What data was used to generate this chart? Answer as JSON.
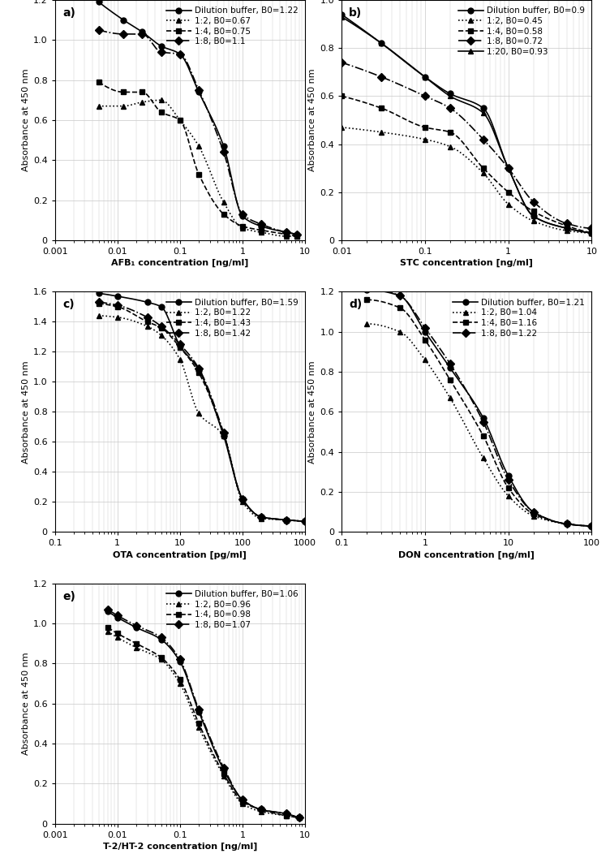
{
  "panels": {
    "a": {
      "title": "a)",
      "xlabel": "AFB₁ concentration [ng/ml]",
      "ylabel": "Absorbance at 450 nm",
      "xlim": [
        0.001,
        10
      ],
      "ylim": [
        0,
        1.2
      ],
      "yticks": [
        0,
        0.2,
        0.4,
        0.6,
        0.8,
        1.0,
        1.2
      ],
      "series": [
        {
          "label": "Dilution buffer, B0=1.22",
          "linestyle": "-",
          "marker": "o",
          "x": [
            0.005,
            0.0125,
            0.025,
            0.05,
            0.1,
            0.2,
            0.5,
            1.0,
            2.0,
            5.0,
            7.5
          ],
          "y": [
            1.19,
            1.1,
            1.04,
            0.97,
            0.93,
            0.74,
            0.47,
            0.12,
            0.07,
            0.04,
            0.03
          ]
        },
        {
          "label": "1:2, B0=0.67",
          "linestyle": ":",
          "marker": "^",
          "x": [
            0.005,
            0.0125,
            0.025,
            0.05,
            0.1,
            0.2,
            0.5,
            1.0,
            2.0,
            5.0,
            7.5
          ],
          "y": [
            0.67,
            0.67,
            0.69,
            0.7,
            0.6,
            0.47,
            0.19,
            0.06,
            0.04,
            0.02,
            0.02
          ]
        },
        {
          "label": "1:4, B0=0.75",
          "linestyle": "--",
          "marker": "s",
          "x": [
            0.005,
            0.0125,
            0.025,
            0.05,
            0.1,
            0.2,
            0.5,
            1.0,
            2.0,
            5.0,
            7.5
          ],
          "y": [
            0.79,
            0.74,
            0.74,
            0.64,
            0.6,
            0.33,
            0.13,
            0.07,
            0.05,
            0.03,
            0.02
          ]
        },
        {
          "label": "1:8, B0=1.1",
          "linestyle": "-.",
          "marker": "D",
          "x": [
            0.005,
            0.0125,
            0.025,
            0.05,
            0.1,
            0.2,
            0.5,
            1.0,
            2.0,
            5.0,
            7.5
          ],
          "y": [
            1.05,
            1.03,
            1.03,
            0.94,
            0.93,
            0.75,
            0.44,
            0.13,
            0.08,
            0.04,
            0.03
          ]
        }
      ]
    },
    "b": {
      "title": "b)",
      "xlabel": "STC concentration [ng/ml]",
      "ylabel": "Absorbance at 450 nm",
      "xlim": [
        0.01,
        10
      ],
      "ylim": [
        0,
        1.0
      ],
      "yticks": [
        0,
        0.2,
        0.4,
        0.6,
        0.8,
        1.0
      ],
      "series": [
        {
          "label": "Dilution buffer, B0=0.9",
          "linestyle": "-",
          "marker": "o",
          "x": [
            0.01,
            0.03,
            0.1,
            0.2,
            0.5,
            1.0,
            2.0,
            5.0,
            10.0
          ],
          "y": [
            0.94,
            0.82,
            0.68,
            0.61,
            0.55,
            0.3,
            0.1,
            0.05,
            0.03
          ]
        },
        {
          "label": "1:2, B0=0.45",
          "linestyle": ":",
          "marker": "^",
          "x": [
            0.01,
            0.03,
            0.1,
            0.2,
            0.5,
            1.0,
            2.0,
            5.0,
            10.0
          ],
          "y": [
            0.47,
            0.45,
            0.42,
            0.39,
            0.28,
            0.15,
            0.08,
            0.04,
            0.03
          ]
        },
        {
          "label": "1:4, B0=0.58",
          "linestyle": "--",
          "marker": "s",
          "x": [
            0.01,
            0.03,
            0.1,
            0.2,
            0.5,
            1.0,
            2.0,
            5.0,
            10.0
          ],
          "y": [
            0.6,
            0.55,
            0.47,
            0.45,
            0.3,
            0.2,
            0.12,
            0.06,
            0.03
          ]
        },
        {
          "label": "1:8, B0=0.72",
          "linestyle": "-.",
          "marker": "D",
          "x": [
            0.01,
            0.03,
            0.1,
            0.2,
            0.5,
            1.0,
            2.0,
            5.0,
            10.0
          ],
          "y": [
            0.74,
            0.68,
            0.6,
            0.55,
            0.42,
            0.3,
            0.16,
            0.07,
            0.05
          ]
        },
        {
          "label": "1:20, B0=0.93",
          "linestyle": "-",
          "marker": "^",
          "x": [
            0.01,
            0.03,
            0.1,
            0.2,
            0.5,
            1.0,
            2.0,
            5.0,
            10.0
          ],
          "y": [
            0.93,
            0.82,
            0.68,
            0.6,
            0.53,
            0.3,
            0.1,
            0.05,
            0.03
          ]
        }
      ]
    },
    "c": {
      "title": "c)",
      "xlabel": "OTA concentration [pg/ml]",
      "ylabel": "Absorbance at 450 nm",
      "xlim": [
        0.1,
        1000
      ],
      "ylim": [
        0,
        1.6
      ],
      "yticks": [
        0,
        0.2,
        0.4,
        0.6,
        0.8,
        1.0,
        1.2,
        1.4,
        1.6
      ],
      "series": [
        {
          "label": "Dilution buffer, B0=1.59",
          "linestyle": "-",
          "marker": "o",
          "x": [
            0.5,
            1.0,
            3.0,
            5.0,
            10.0,
            20.0,
            50.0,
            100.0,
            200.0,
            500.0,
            1000.0
          ],
          "y": [
            1.59,
            1.57,
            1.53,
            1.5,
            1.24,
            1.08,
            0.64,
            0.22,
            0.1,
            0.08,
            0.07
          ]
        },
        {
          "label": "1:2, B0=1.22",
          "linestyle": ":",
          "marker": "^",
          "x": [
            0.5,
            1.0,
            3.0,
            5.0,
            10.0,
            20.0,
            50.0,
            100.0,
            200.0,
            500.0,
            1000.0
          ],
          "y": [
            1.44,
            1.43,
            1.37,
            1.31,
            1.15,
            0.79,
            0.64,
            0.2,
            0.09,
            0.08,
            0.07
          ]
        },
        {
          "label": "1:4, B0=1.43",
          "linestyle": "--",
          "marker": "s",
          "x": [
            0.5,
            1.0,
            3.0,
            5.0,
            10.0,
            20.0,
            50.0,
            100.0,
            200.0,
            500.0,
            1000.0
          ],
          "y": [
            1.52,
            1.5,
            1.4,
            1.36,
            1.23,
            1.06,
            0.65,
            0.22,
            0.1,
            0.08,
            0.07
          ]
        },
        {
          "label": "1:8, B0=1.42",
          "linestyle": "-.",
          "marker": "D",
          "x": [
            0.5,
            1.0,
            3.0,
            5.0,
            10.0,
            20.0,
            50.0,
            100.0,
            200.0,
            500.0,
            1000.0
          ],
          "y": [
            1.53,
            1.51,
            1.43,
            1.37,
            1.25,
            1.09,
            0.66,
            0.22,
            0.1,
            0.08,
            0.07
          ]
        }
      ]
    },
    "d": {
      "title": "d)",
      "xlabel": "DON concentration [ng/ml]",
      "ylabel": "Absorbance at 450 nm",
      "xlim": [
        0.1,
        100
      ],
      "ylim": [
        0,
        1.2
      ],
      "yticks": [
        0,
        0.2,
        0.4,
        0.6,
        0.8,
        1.0,
        1.2
      ],
      "series": [
        {
          "label": "Dilution buffer, B0=1.21",
          "linestyle": "-",
          "marker": "o",
          "x": [
            0.2,
            0.5,
            1.0,
            2.0,
            5.0,
            10.0,
            20.0,
            50.0,
            100.0
          ],
          "y": [
            1.21,
            1.18,
            1.0,
            0.82,
            0.57,
            0.28,
            0.1,
            0.04,
            0.03
          ]
        },
        {
          "label": "1:2, B0=1.04",
          "linestyle": ":",
          "marker": "^",
          "x": [
            0.2,
            0.5,
            1.0,
            2.0,
            5.0,
            10.0,
            20.0,
            50.0,
            100.0
          ],
          "y": [
            1.04,
            1.0,
            0.86,
            0.67,
            0.37,
            0.18,
            0.08,
            0.04,
            0.03
          ]
        },
        {
          "label": "1:4, B0=1.16",
          "linestyle": "--",
          "marker": "s",
          "x": [
            0.2,
            0.5,
            1.0,
            2.0,
            5.0,
            10.0,
            20.0,
            50.0,
            100.0
          ],
          "y": [
            1.16,
            1.12,
            0.96,
            0.76,
            0.48,
            0.22,
            0.09,
            0.04,
            0.03
          ]
        },
        {
          "label": "1:8, B0=1.22",
          "linestyle": "-.",
          "marker": "D",
          "x": [
            0.2,
            0.5,
            1.0,
            2.0,
            5.0,
            10.0,
            20.0,
            50.0,
            100.0
          ],
          "y": [
            1.22,
            1.18,
            1.02,
            0.84,
            0.55,
            0.26,
            0.1,
            0.04,
            0.03
          ]
        }
      ]
    },
    "e": {
      "title": "e)",
      "xlabel": "T-2/HT-2 concentration [ng/ml]",
      "ylabel": "Absorbance at 450 nm",
      "xlim": [
        0.001,
        10
      ],
      "ylim": [
        0,
        1.2
      ],
      "yticks": [
        0,
        0.2,
        0.4,
        0.6,
        0.8,
        1.0,
        1.2
      ],
      "series": [
        {
          "label": "Dilution buffer, B0=1.06",
          "linestyle": "-",
          "marker": "o",
          "x": [
            0.007,
            0.01,
            0.02,
            0.05,
            0.1,
            0.2,
            0.5,
            1.0,
            2.0,
            5.0,
            8.0
          ],
          "y": [
            1.06,
            1.03,
            0.98,
            0.92,
            0.81,
            0.56,
            0.27,
            0.12,
            0.07,
            0.05,
            0.03
          ]
        },
        {
          "label": "1:2, B0=0.96",
          "linestyle": ":",
          "marker": "^",
          "x": [
            0.007,
            0.01,
            0.02,
            0.05,
            0.1,
            0.2,
            0.5,
            1.0,
            2.0,
            5.0,
            8.0
          ],
          "y": [
            0.96,
            0.93,
            0.88,
            0.82,
            0.7,
            0.48,
            0.24,
            0.1,
            0.06,
            0.04,
            0.03
          ]
        },
        {
          "label": "1:4, B0=0.98",
          "linestyle": "--",
          "marker": "s",
          "x": [
            0.007,
            0.01,
            0.02,
            0.05,
            0.1,
            0.2,
            0.5,
            1.0,
            2.0,
            5.0,
            8.0
          ],
          "y": [
            0.98,
            0.95,
            0.9,
            0.83,
            0.72,
            0.5,
            0.25,
            0.11,
            0.07,
            0.04,
            0.03
          ]
        },
        {
          "label": "1:8, B0=1.07",
          "linestyle": "-.",
          "marker": "D",
          "x": [
            0.007,
            0.01,
            0.02,
            0.05,
            0.1,
            0.2,
            0.5,
            1.0,
            2.0,
            5.0,
            8.0
          ],
          "y": [
            1.07,
            1.04,
            0.99,
            0.93,
            0.82,
            0.57,
            0.28,
            0.12,
            0.07,
            0.05,
            0.03
          ]
        }
      ]
    }
  },
  "marker_size": 5,
  "linewidth": 1.2,
  "font_size": 8,
  "label_font_size": 8,
  "title_font_size": 10,
  "legend_font_size": 7.5
}
